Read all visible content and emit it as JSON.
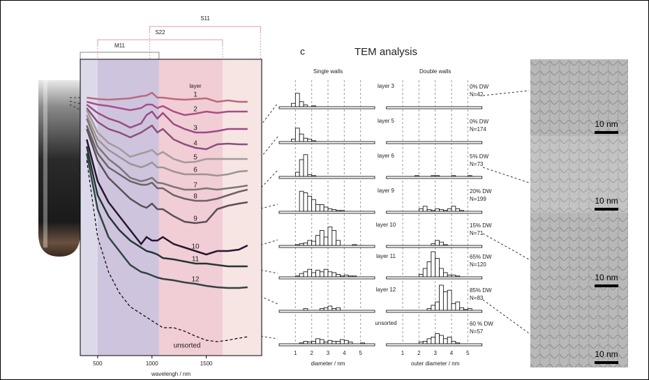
{
  "chart_data": [
    {
      "type": "line",
      "x_label": "wavelengh / nm",
      "legend_title": "layer",
      "x": [
        400,
        500,
        600,
        700,
        800,
        900,
        950,
        1000,
        1050,
        1100,
        1200,
        1300,
        1400,
        1500,
        1600,
        1700,
        1800,
        1880
      ],
      "xlim": [
        340,
        2010
      ],
      "xticks": [
        500,
        1000,
        1500
      ],
      "ylim": [
        0,
        425
      ],
      "regions": [
        {
          "range": [
            340,
            500
          ],
          "color": "#dcdaea"
        },
        {
          "range": [
            500,
            1065
          ],
          "color": "#cec4de"
        },
        {
          "range": [
            1065,
            1650
          ],
          "color": "#f1cdd5"
        },
        {
          "range": [
            1650,
            2010
          ],
          "color": "#f6e5e3"
        }
      ],
      "brackets": [
        {
          "label": "S11",
          "range": [
            980,
            2000
          ],
          "color": "#e79aaa"
        },
        {
          "label": "S22",
          "range": [
            500,
            1650
          ],
          "color": "#e79aaa"
        },
        {
          "label": "M11",
          "range": [
            340,
            1065
          ],
          "color": "#888888"
        }
      ],
      "series": [
        {
          "name": "1",
          "color": "#b86a7c",
          "values": [
            370,
            368,
            367,
            368,
            369,
            372,
            373,
            377,
            370,
            370,
            368,
            367,
            368,
            369,
            364,
            366,
            364,
            364
          ]
        },
        {
          "name": "2",
          "color": "#a84e86",
          "values": [
            364,
            360,
            358,
            355,
            352,
            355,
            360,
            360,
            355,
            358,
            350,
            345,
            347,
            350,
            348,
            350,
            350,
            350
          ]
        },
        {
          "name": "3",
          "color": "#9a4a86",
          "values": [
            360,
            348,
            340,
            335,
            327,
            333,
            345,
            350,
            340,
            348,
            332,
            325,
            320,
            320,
            322,
            325,
            325,
            325
          ]
        },
        {
          "name": "4",
          "color": "#8a4f7d",
          "values": [
            355,
            335,
            325,
            320,
            313,
            320,
            325,
            330,
            320,
            325,
            310,
            303,
            298,
            296,
            303,
            304,
            303,
            303
          ]
        },
        {
          "name": "5",
          "color": "#a49a98",
          "values": [
            352,
            320,
            305,
            297,
            285,
            290,
            292,
            295,
            288,
            292,
            282,
            277,
            278,
            282,
            282,
            282,
            282,
            282
          ]
        },
        {
          "name": "6",
          "color": "#9b9394",
          "values": [
            345,
            310,
            295,
            285,
            275,
            270,
            273,
            277,
            270,
            270,
            264,
            260,
            260,
            260,
            258,
            260,
            264,
            265
          ]
        },
        {
          "name": "7",
          "color": "#7d7477",
          "values": [
            340,
            300,
            282,
            270,
            255,
            250,
            252,
            255,
            248,
            247,
            242,
            238,
            238,
            240,
            238,
            240,
            242,
            244
          ]
        },
        {
          "name": "8",
          "color": "#6d6167",
          "values": [
            330,
            290,
            270,
            260,
            250,
            245,
            245,
            248,
            240,
            240,
            230,
            225,
            222,
            222,
            225,
            230,
            235,
            238
          ]
        },
        {
          "name": "9",
          "color": "#5b4e57",
          "values": [
            325,
            280,
            255,
            240,
            225,
            215,
            212,
            218,
            210,
            210,
            200,
            192,
            190,
            192,
            210,
            215,
            218,
            220
          ]
        },
        {
          "name": "10",
          "color": "#2a1530",
          "values": [
            310,
            250,
            220,
            200,
            180,
            160,
            170,
            165,
            165,
            170,
            160,
            155,
            150,
            145,
            150,
            150,
            152,
            158
          ]
        },
        {
          "name": "11",
          "color": "#243534",
          "values": [
            300,
            230,
            200,
            180,
            165,
            155,
            150,
            148,
            145,
            140,
            138,
            135,
            132,
            132,
            130,
            128,
            128,
            128
          ]
        },
        {
          "name": "12",
          "color": "#2f4342",
          "values": [
            290,
            210,
            170,
            150,
            130,
            120,
            118,
            115,
            112,
            110,
            108,
            105,
            103,
            100,
            98,
            97,
            97,
            98
          ]
        },
        {
          "name": "unsorted",
          "color": "#000000",
          "dashed": true,
          "values": [
            280,
            170,
            120,
            90,
            70,
            60,
            55,
            50,
            45,
            40,
            40,
            35,
            28,
            22,
            20,
            22,
            25,
            27
          ]
        }
      ]
    },
    {
      "type": "histogram",
      "panel_label": "c",
      "title": "TEM analysis",
      "bins": [
        0.5,
        0.75,
        1,
        1.25,
        1.5,
        1.75,
        2,
        2.25,
        2.5,
        2.75,
        3,
        3.25,
        3.5,
        3.75,
        4,
        4.25,
        4.5,
        4.75,
        5,
        5.25,
        5.5
      ],
      "xlim": [
        0,
        6
      ],
      "xticks": [
        1,
        2,
        3,
        4,
        5
      ],
      "grid": true,
      "columns": [
        {
          "title": "Single walls",
          "x_label": "diameter / nm"
        },
        {
          "title": "Double walls",
          "x_label": "outer diameter / nm"
        }
      ],
      "rows": [
        {
          "label": "layer 3",
          "dw": "0% DW",
          "n": "N=42",
          "single": [
            0,
            4,
            16,
            6,
            2,
            0,
            1,
            0,
            0,
            0,
            0,
            0,
            0,
            0,
            0,
            0,
            0,
            0,
            0,
            0
          ],
          "double": [
            0,
            0,
            0,
            0,
            0,
            0,
            0,
            0,
            0,
            0,
            0,
            0,
            0,
            0,
            0,
            0,
            0,
            0,
            0,
            0
          ]
        },
        {
          "label": "layer 5",
          "dw": "0% DW",
          "n": "N=174",
          "single": [
            0,
            3,
            16,
            9,
            4,
            3,
            1,
            0,
            0,
            0,
            0,
            0,
            0,
            0,
            0,
            0,
            0,
            0,
            0,
            0
          ],
          "double": [
            0,
            0,
            0,
            0,
            0,
            0,
            0,
            0,
            0,
            0,
            0,
            0,
            0,
            0,
            0,
            0,
            0,
            0,
            0,
            0
          ]
        },
        {
          "label": "layer 6",
          "dw": "5% DW",
          "n": "N=73",
          "single": [
            0,
            0,
            5,
            20,
            26,
            2,
            1,
            0,
            0,
            0,
            0,
            0,
            0,
            0,
            0,
            0,
            0,
            0,
            0,
            0
          ],
          "double": [
            0,
            0,
            0,
            0,
            0,
            1,
            0,
            0,
            0,
            1,
            1,
            0,
            0,
            0,
            1,
            0,
            0,
            0,
            1,
            0
          ]
        },
        {
          "label": "layer 9",
          "dw": "20% DW",
          "n": "N=199",
          "single": [
            0,
            0,
            0,
            24,
            22,
            18,
            14,
            8,
            8,
            5,
            3,
            2,
            1,
            1,
            0,
            0,
            0,
            0,
            0,
            0
          ],
          "double": [
            0,
            0,
            0,
            0,
            0,
            0,
            3,
            6,
            2,
            1,
            3,
            2,
            1,
            3,
            6,
            3,
            1,
            0,
            0,
            0
          ]
        },
        {
          "label": "layer 10",
          "dw": "15% DW",
          "n": "N=71",
          "single": [
            0,
            0,
            1,
            2,
            3,
            6,
            5,
            12,
            18,
            10,
            22,
            18,
            6,
            0,
            0,
            0,
            1,
            0,
            0,
            0
          ],
          "double": [
            0,
            0,
            0,
            0,
            0,
            0,
            0,
            0,
            0,
            2,
            6,
            4,
            1,
            0,
            0,
            0,
            0,
            0,
            0,
            0
          ]
        },
        {
          "label": "layer 11",
          "dw": "65% DW",
          "n": "N=120",
          "single": [
            0,
            0,
            1,
            4,
            6,
            9,
            5,
            8,
            6,
            9,
            6,
            5,
            3,
            1,
            2,
            1,
            1,
            0,
            0,
            0
          ],
          "double": [
            0,
            0,
            0,
            0,
            0,
            0,
            3,
            10,
            18,
            30,
            22,
            10,
            5,
            2,
            2,
            1,
            0,
            0,
            0,
            0
          ]
        },
        {
          "label": "layer 12",
          "dw": "85% DW",
          "n": "N=83",
          "single": [
            0,
            0,
            0,
            0,
            2,
            0,
            0,
            0,
            2,
            3,
            5,
            2,
            3,
            0,
            0,
            0,
            0,
            0,
            0,
            0
          ],
          "double": [
            0,
            0,
            0,
            0,
            0,
            0,
            0,
            0,
            2,
            6,
            10,
            30,
            22,
            24,
            8,
            10,
            3,
            1,
            2,
            0
          ]
        },
        {
          "label": "unsorted",
          "dw": "60 % DW",
          "n": "N=57",
          "single": [
            0,
            0,
            0,
            1,
            3,
            2,
            3,
            6,
            5,
            2,
            4,
            3,
            3,
            5,
            4,
            2,
            0,
            0,
            1,
            0
          ],
          "double": [
            0,
            0,
            0,
            0,
            0,
            0,
            2,
            3,
            6,
            8,
            12,
            10,
            6,
            8,
            3,
            1,
            0,
            0,
            0,
            0
          ]
        }
      ]
    }
  ],
  "tem_images": {
    "scale_bars": [
      "10 nm",
      "10 nm",
      "10 nm",
      "10 nm"
    ]
  }
}
